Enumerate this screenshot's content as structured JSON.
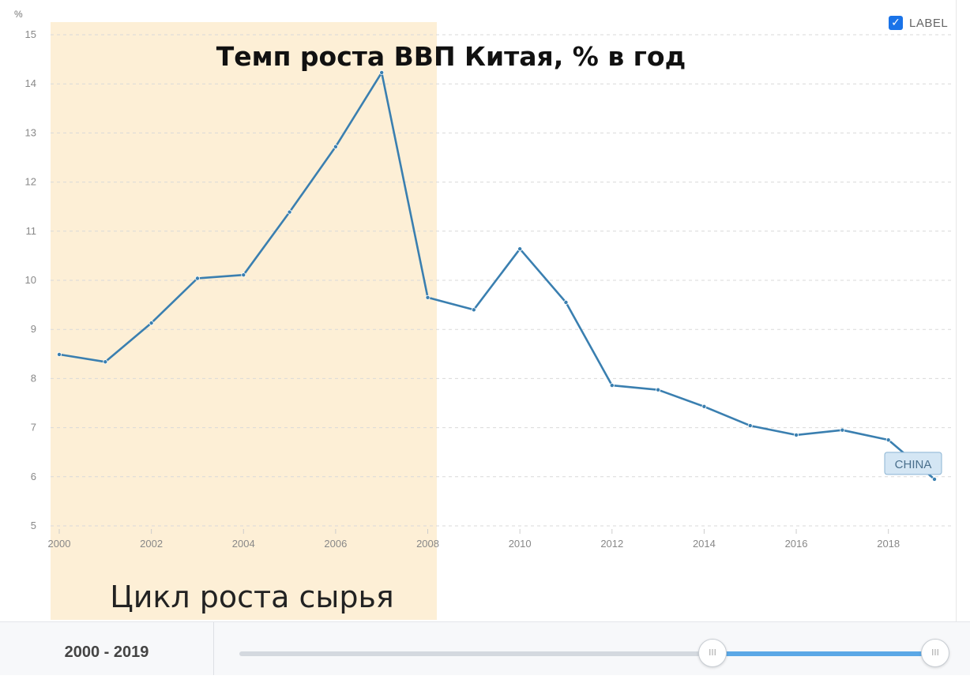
{
  "chart_data": {
    "type": "line",
    "title": "Темп роста ВВП Китая, % в год",
    "ylabel": "%",
    "xlabel": "",
    "x": [
      2000,
      2001,
      2002,
      2003,
      2004,
      2005,
      2006,
      2007,
      2008,
      2009,
      2010,
      2011,
      2012,
      2013,
      2014,
      2015,
      2016,
      2017,
      2018,
      2019
    ],
    "series": [
      {
        "name": "CHINA",
        "values": [
          8.49,
          8.34,
          9.13,
          10.04,
          10.11,
          11.39,
          12.72,
          14.23,
          9.65,
          9.4,
          10.64,
          9.55,
          7.86,
          7.77,
          7.43,
          7.04,
          6.85,
          6.95,
          6.75,
          5.95
        ]
      }
    ],
    "xlim": [
      2000,
      2019
    ],
    "ylim": [
      5,
      15
    ],
    "x_ticks": [
      "2000",
      "2002",
      "2004",
      "2006",
      "2008",
      "2010",
      "2012",
      "2014",
      "2016",
      "2018"
    ],
    "y_ticks": [
      "5",
      "6",
      "7",
      "8",
      "9",
      "10",
      "11",
      "12",
      "13",
      "14",
      "15"
    ],
    "grid": true,
    "highlight": {
      "x_from": 2000,
      "x_to": 2008,
      "label": "Цикл роста сырья",
      "color": "#fdefd6"
    },
    "line_color": "#3a7fb0",
    "series_label_color": "#d4e6f4"
  },
  "legend": {
    "label": "LABEL",
    "checked": true,
    "check_glyph": "✓"
  },
  "range_slider": {
    "label": "2000 - 2019",
    "handle_glyph": "III",
    "from_year": 2000,
    "to_year": 2019
  }
}
